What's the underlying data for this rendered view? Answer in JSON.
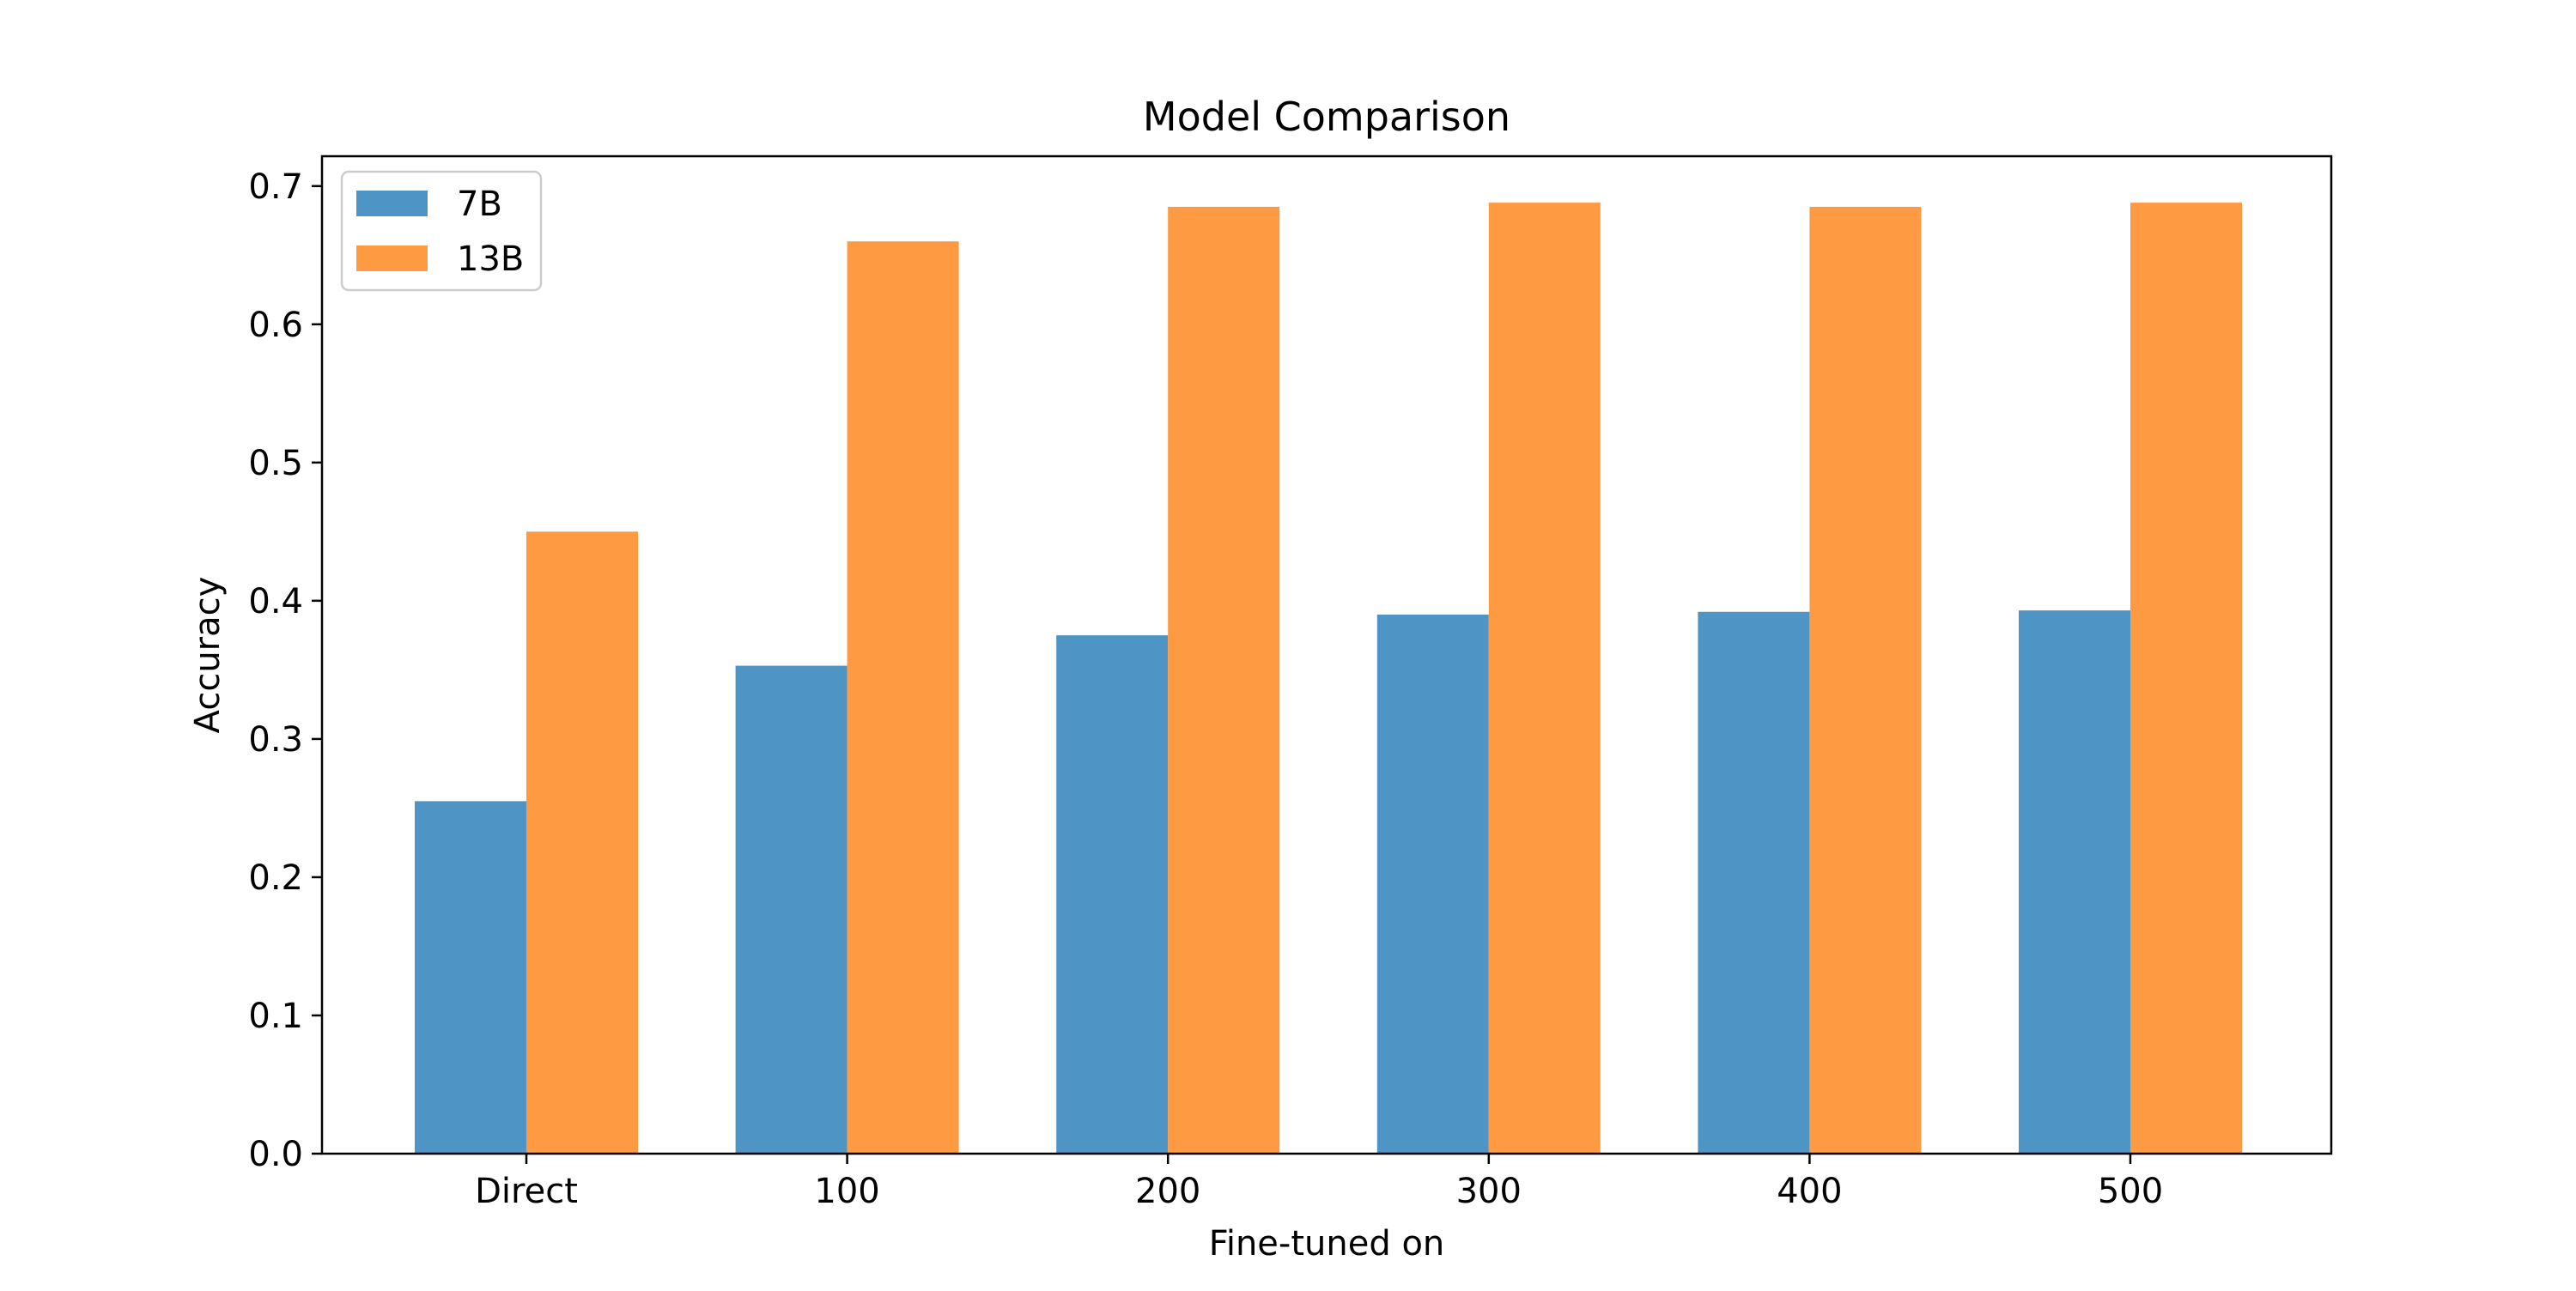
{
  "chart_data": {
    "type": "bar",
    "title": "Model Comparison",
    "xlabel": "Fine-tuned on",
    "ylabel": "Accuracy",
    "categories": [
      "Direct",
      "100",
      "200",
      "300",
      "400",
      "500"
    ],
    "series": [
      {
        "name": "7B",
        "values": [
          0.255,
          0.353,
          0.375,
          0.39,
          0.392,
          0.393
        ]
      },
      {
        "name": "13B",
        "values": [
          0.45,
          0.66,
          0.685,
          0.688,
          0.685,
          0.688
        ]
      }
    ],
    "ylim": [
      0,
      0.7216
    ],
    "yticks": [
      "0.0",
      "0.1",
      "0.2",
      "0.3",
      "0.4",
      "0.5",
      "0.6",
      "0.7"
    ],
    "colors": [
      "#4e94c4",
      "#fe9a42"
    ],
    "legend_position": "top-left",
    "grid": false
  }
}
